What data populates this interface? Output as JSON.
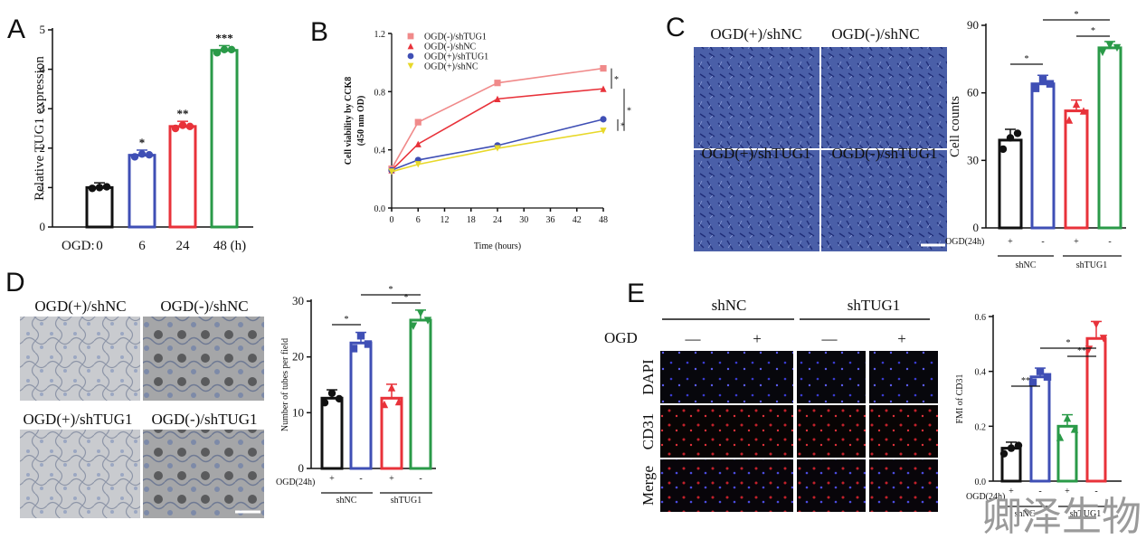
{
  "watermark": "卿泽生物",
  "colors": {
    "black": "#111111",
    "blue": "#3f4fb5",
    "red": "#e8323a",
    "green": "#2a9a48",
    "pink": "#f08a8a",
    "yellow": "#e8d82a"
  },
  "chart_data": [
    {
      "panel": "A",
      "type": "bar",
      "categories": [
        "0",
        "6",
        "24",
        "48 (h)"
      ],
      "values": [
        1.0,
        1.82,
        2.55,
        4.48
      ],
      "points": [
        [
          0.98,
          1.0,
          1.02
        ],
        [
          1.78,
          1.85,
          1.83
        ],
        [
          2.5,
          2.58,
          2.55
        ],
        [
          4.42,
          4.5,
          4.5
        ]
      ],
      "significance": [
        "",
        "*",
        "**",
        "***"
      ],
      "colors": [
        "black",
        "blue",
        "red",
        "green"
      ],
      "ylabel": "Relative TUG1 expression",
      "xprefix": "OGD:",
      "ylim": [
        0,
        5
      ],
      "yticks": [
        "0",
        "1",
        "2",
        "3",
        "4",
        "5"
      ]
    },
    {
      "panel": "B",
      "type": "line",
      "x": [
        0,
        6,
        24,
        48
      ],
      "xticks": [
        "0",
        "6",
        "12",
        "18",
        "24",
        "30",
        "36",
        "42",
        "48"
      ],
      "yticks": [
        "0.0",
        "0.4",
        "0.8",
        "1.2"
      ],
      "ylim": [
        0,
        1.2
      ],
      "xlim": [
        0,
        48
      ],
      "xlabel": "Time (hours)",
      "ylabel": "Cell viability by CCK8",
      "ylabel2": "(450 nm OD)",
      "series": [
        {
          "name": "OGD(-)/shTUG1",
          "values": [
            0.27,
            0.59,
            0.86,
            0.96
          ],
          "color": "pink",
          "marker": "square"
        },
        {
          "name": "OGD(-)/shNC",
          "values": [
            0.26,
            0.44,
            0.75,
            0.82
          ],
          "color": "red",
          "marker": "triangle"
        },
        {
          "name": "OGD(+)/shTUG1",
          "values": [
            0.26,
            0.33,
            0.43,
            0.61
          ],
          "color": "blue",
          "marker": "circle"
        },
        {
          "name": "OGD(+)/shNC",
          "values": [
            0.25,
            0.3,
            0.41,
            0.53
          ],
          "color": "yellow",
          "marker": "tri-down"
        }
      ],
      "significance": [
        "*",
        "*",
        "*"
      ]
    },
    {
      "panel": "C",
      "type": "bar",
      "image_labels": [
        "OGD(+)/shNC",
        "OGD(-)/shNC",
        "OGD(+)/shTUG1",
        "OGD(-)/shTUG1"
      ],
      "categories": [
        "+",
        "-",
        "+",
        "-"
      ],
      "values": [
        39,
        64,
        52,
        80
      ],
      "points": [
        [
          35,
          40,
          42
        ],
        [
          62,
          66,
          64
        ],
        [
          48,
          55,
          52
        ],
        [
          78,
          81,
          80
        ]
      ],
      "colors": [
        "black",
        "blue",
        "red",
        "green"
      ],
      "ylabel": "Cell counts",
      "ylim": [
        0,
        90
      ],
      "yticks": [
        "0",
        "30",
        "60",
        "90"
      ],
      "xprefix": "OGD(24h)",
      "groups": [
        "shNC",
        "shTUG1"
      ],
      "significance": [
        "*",
        "*",
        "*"
      ]
    },
    {
      "panel": "D",
      "type": "bar",
      "image_labels": [
        "OGD(+)/shNC",
        "OGD(-)/shNC",
        "OGD(+)/shTUG1",
        "OGD(-)/shTUG1"
      ],
      "categories": [
        "+",
        "-",
        "+",
        "-"
      ],
      "values": [
        12.6,
        22.5,
        12.6,
        26.6
      ],
      "points": [
        [
          11.8,
          13.5,
          12.5
        ],
        [
          21.5,
          23.8,
          22.3
        ],
        [
          11.5,
          14.5,
          12
        ],
        [
          25.5,
          27.8,
          26.5
        ]
      ],
      "colors": [
        "black",
        "blue",
        "red",
        "green"
      ],
      "ylabel": "Number of tubes per field",
      "ylim": [
        0,
        30
      ],
      "yticks": [
        "0",
        "10",
        "20",
        "30"
      ],
      "xprefix": "OGD(24h)",
      "groups": [
        "shNC",
        "shTUG1"
      ],
      "significance": [
        "*",
        "*",
        "*"
      ]
    },
    {
      "panel": "E",
      "type": "bar",
      "group_headers": [
        "shNC",
        "shTUG1"
      ],
      "ogd_label": "OGD",
      "ogd_signs": [
        "—",
        "+",
        "—",
        "+"
      ],
      "row_labels": [
        "DAPI",
        "CD31",
        "Merge"
      ],
      "categories": [
        "+",
        "-",
        "+",
        "-"
      ],
      "values": [
        0.12,
        0.38,
        0.2,
        0.52
      ],
      "points": [
        [
          0.1,
          0.12,
          0.13
        ],
        [
          0.36,
          0.4,
          0.38
        ],
        [
          0.16,
          0.23,
          0.19
        ],
        [
          0.48,
          0.57,
          0.52
        ]
      ],
      "colors": [
        "black",
        "blue",
        "green",
        "red"
      ],
      "ylabel": "FMI of CD31",
      "ylim": [
        0,
        0.6
      ],
      "yticks": [
        "0.0",
        "0.2",
        "0.4",
        "0.6"
      ],
      "xprefix": "OGD(24h)",
      "groups": [
        "shNC",
        "shTUG1"
      ],
      "significance": [
        "**",
        "*",
        "**"
      ]
    }
  ]
}
